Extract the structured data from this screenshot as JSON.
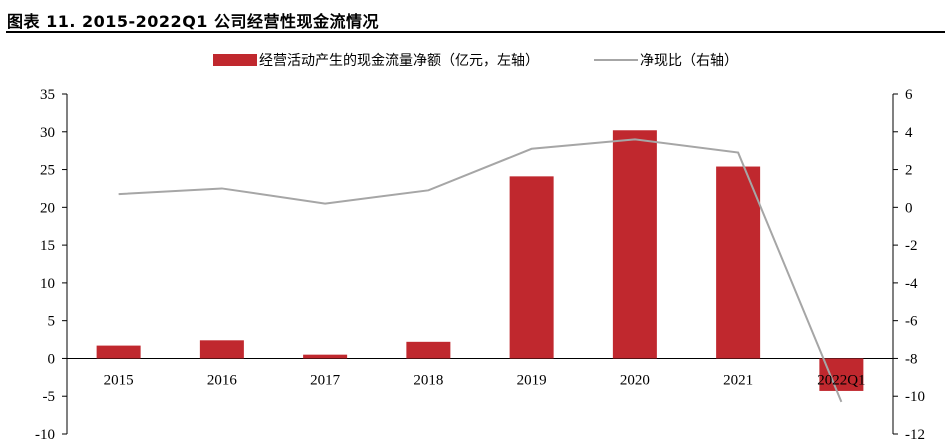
{
  "title": "图表 11. 2015-2022Q1 公司经营性现金流情况",
  "colors": {
    "bar": "#C0282E",
    "line": "#A6A6A6",
    "axis": "#000000"
  },
  "legend": {
    "bar_label": "经营活动产生的现金流量净额（亿元，左轴）",
    "line_label": "净现比（右轴）"
  },
  "chart_data": {
    "type": "bar+line",
    "categories": [
      "2015",
      "2016",
      "2017",
      "2018",
      "2019",
      "2020",
      "2021",
      "2022Q1"
    ],
    "series": [
      {
        "name": "经营活动产生的现金流量净额（亿元，左轴）",
        "type": "bar",
        "axis": "left",
        "values": [
          1.7,
          2.4,
          0.5,
          2.2,
          24.1,
          30.2,
          25.4,
          -4.3
        ]
      },
      {
        "name": "净现比（右轴）",
        "type": "line",
        "axis": "right",
        "values": [
          0.7,
          1.0,
          0.2,
          0.9,
          3.1,
          3.6,
          2.9,
          -10.3
        ]
      }
    ],
    "y_left": {
      "ylim": [
        -10,
        35
      ],
      "ticks": [
        35,
        30,
        25,
        20,
        15,
        10,
        5,
        0,
        -5,
        -10
      ]
    },
    "y_right": {
      "ylim": [
        -12,
        6
      ],
      "ticks": [
        6,
        4,
        2,
        0,
        -2,
        -4,
        -6,
        -8,
        -10,
        -12
      ]
    },
    "legend_position": "top-center",
    "grid": false
  }
}
